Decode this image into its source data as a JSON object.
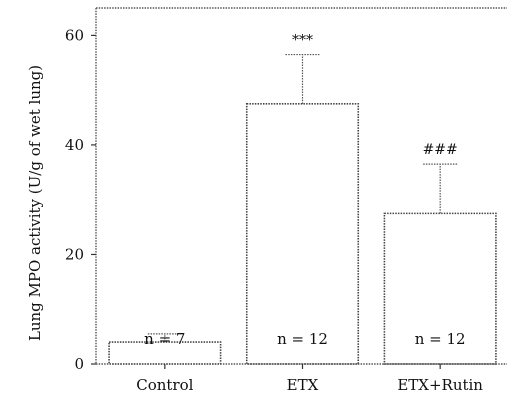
{
  "chart_data": {
    "type": "bar",
    "title": "",
    "xlabel": "",
    "ylabel": "Lung MPO activity (U/g of wet lung)",
    "ylim": [
      0,
      65
    ],
    "yticks": [
      0,
      20,
      40,
      60
    ],
    "categories": [
      "Control",
      "ETX",
      "ETX+Rutin"
    ],
    "values": [
      4,
      47.5,
      27.5
    ],
    "errors": [
      1.5,
      9,
      9
    ],
    "n_labels": [
      "n = 7",
      "n = 12",
      "n = 12"
    ],
    "significance": [
      "",
      "***",
      "###"
    ],
    "grid": false,
    "legend": "none"
  }
}
